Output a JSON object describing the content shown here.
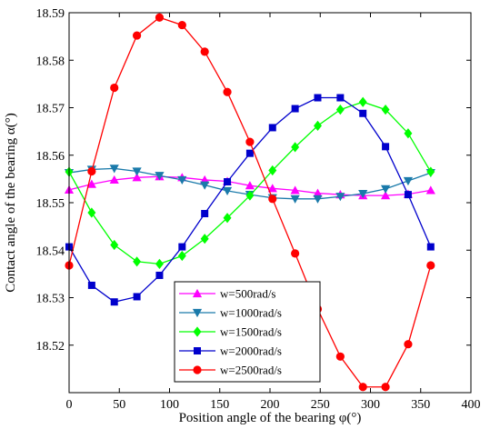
{
  "chart_data": {
    "type": "line",
    "title": "",
    "xlabel": "Position angle of the bearing φ(°)",
    "ylabel": "Contact angle of the bearing α(°)",
    "xlim": [
      0,
      400
    ],
    "ylim": [
      18.51,
      18.59
    ],
    "x_ticks": [
      0,
      50,
      100,
      150,
      200,
      250,
      300,
      350,
      400
    ],
    "y_ticks": [
      18.51,
      18.52,
      18.53,
      18.54,
      18.55,
      18.56,
      18.57,
      18.58,
      18.59
    ],
    "x_tick_labels": [
      "0",
      "50",
      "100",
      "150",
      "200",
      "250",
      "300",
      "350",
      "400"
    ],
    "y_tick_labels": [
      "",
      "18.52",
      "18.53",
      "18.54",
      "18.55",
      "18.56",
      "18.57",
      "18.58",
      "18.59"
    ],
    "x": [
      0,
      22.5,
      45,
      67.5,
      90,
      112.5,
      135,
      157.5,
      180,
      202.5,
      225,
      247.5,
      270,
      292.5,
      315,
      337.5,
      360
    ],
    "grid": false,
    "legend_position": "bottom-center",
    "series": [
      {
        "name": "w=500rad/s",
        "color": "#ff00ff",
        "marker": "triangle-up",
        "values": [
          18.5527,
          18.5539,
          18.5548,
          18.5553,
          18.5555,
          18.5553,
          18.5548,
          18.5545,
          18.5536,
          18.553,
          18.5526,
          18.552,
          18.5517,
          18.5515,
          18.5515,
          18.5518,
          18.5526
        ]
      },
      {
        "name": "w=1000rad/s",
        "color": "#1a7aaa",
        "marker": "triangle-down",
        "values": [
          18.5563,
          18.557,
          18.5572,
          18.5566,
          18.5557,
          18.5548,
          18.5537,
          18.5525,
          18.5517,
          18.551,
          18.5508,
          18.5508,
          18.5513,
          18.5519,
          18.5529,
          18.5546,
          18.5563
        ]
      },
      {
        "name": "w=1500rad/s",
        "color": "#00ff00",
        "marker": "diamond",
        "values": [
          18.5565,
          18.5479,
          18.5411,
          18.5376,
          18.5371,
          18.5388,
          18.5424,
          18.5468,
          18.5515,
          18.5568,
          18.5617,
          18.5662,
          18.5696,
          18.5712,
          18.5696,
          18.5646,
          18.5565
        ]
      },
      {
        "name": "w=2000rad/s",
        "color": "#0000cc",
        "marker": "square",
        "values": [
          18.5407,
          18.5326,
          18.5291,
          18.5302,
          18.5347,
          18.5407,
          18.5477,
          18.5544,
          18.5604,
          18.5658,
          18.5698,
          18.5721,
          18.5721,
          18.5688,
          18.5618,
          18.5517,
          18.5407
        ]
      },
      {
        "name": "w=2500rad/s",
        "color": "#ff0000",
        "marker": "circle",
        "values": [
          18.5368,
          18.5566,
          18.5742,
          18.5852,
          18.589,
          18.5874,
          18.5818,
          18.5733,
          18.5628,
          18.5508,
          18.5393,
          18.5276,
          18.5176,
          18.5112,
          18.5112,
          18.5202,
          18.5368
        ]
      }
    ]
  }
}
